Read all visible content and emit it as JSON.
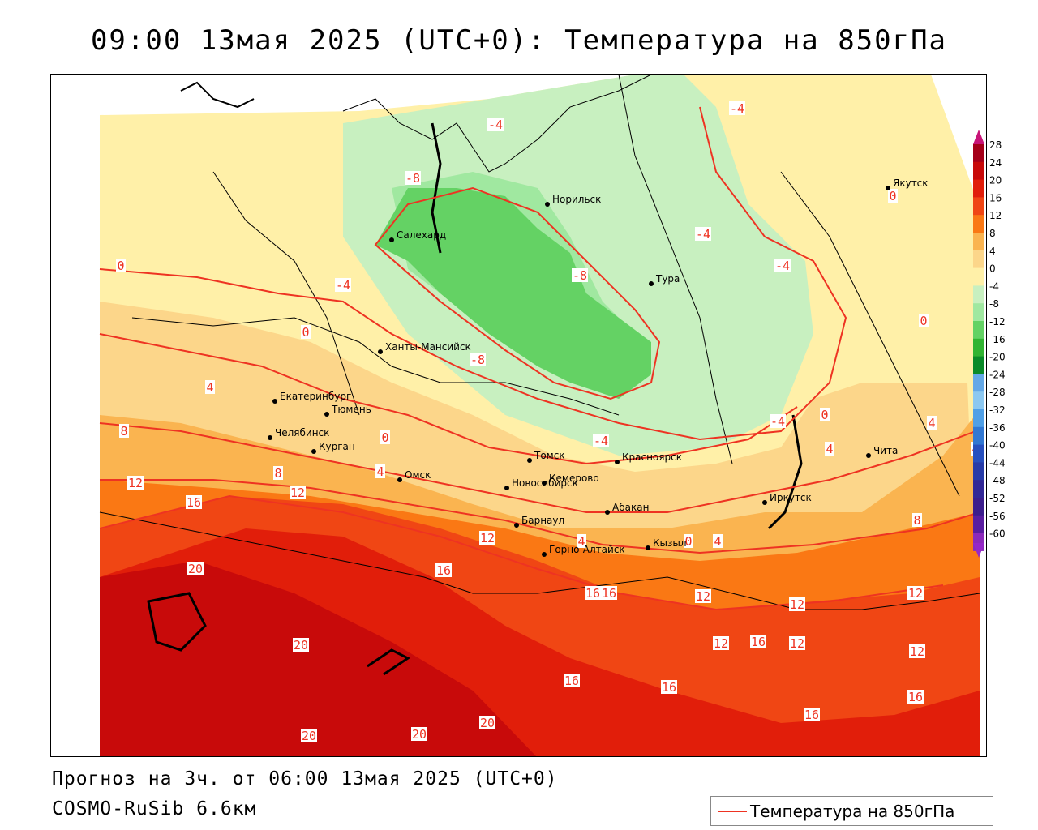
{
  "title": "09:00 13мая 2025 (UTC+0): Температура на 850гПа",
  "footer": {
    "forecast": "Прогноз на 3ч. от 06:00 13мая 2025 (UTC+0)",
    "model": "COSMO-RuSib 6.6км"
  },
  "legend": {
    "label": "Температура на 850гПа",
    "line_color": "#ee3322"
  },
  "colorbar": {
    "ticks": [
      "28",
      "24",
      "20",
      "16",
      "12",
      "8",
      "4",
      "0",
      "-4",
      "-8",
      "-12",
      "-16",
      "-20",
      "-24",
      "-28",
      "-32",
      "-36",
      "-40",
      "-44",
      "-48",
      "-52",
      "-56",
      "-60"
    ],
    "colors": [
      "#a50019",
      "#c80a0a",
      "#e11e0a",
      "#f04614",
      "#fa7814",
      "#fab450",
      "#fcd68a",
      "#fff0a8",
      "#c8f0c0",
      "#a0e8a0",
      "#64d264",
      "#32b432",
      "#0a8a28",
      "#64a8e6",
      "#8cc8f0",
      "#50a0e6",
      "#3278d2",
      "#2850be",
      "#283ca8",
      "#322896",
      "#3c1e8c",
      "#5a1ea0",
      "#8c2aba"
    ]
  },
  "cities": [
    {
      "name": "Салехард"
    },
    {
      "name": "Норильск"
    },
    {
      "name": "Якутск"
    },
    {
      "name": "Тура"
    },
    {
      "name": "Ханты-Мансийск"
    },
    {
      "name": "Екатеринбург"
    },
    {
      "name": "Тюмень"
    },
    {
      "name": "Челябинск"
    },
    {
      "name": "Курган"
    },
    {
      "name": "Омск"
    },
    {
      "name": "Новосибирск"
    },
    {
      "name": "Томск"
    },
    {
      "name": "Кемерово"
    },
    {
      "name": "Красноярск"
    },
    {
      "name": "Абакан"
    },
    {
      "name": "Барнаул"
    },
    {
      "name": "Горно-Алтайск"
    },
    {
      "name": "Кызыл"
    },
    {
      "name": "Иркутск"
    },
    {
      "name": "Чита"
    }
  ],
  "contour_labels": [
    "-4",
    "-8",
    "-4",
    "-4",
    "-4",
    "0",
    "0",
    "-4",
    "0",
    "-8",
    "-8",
    "-4",
    "4",
    "0",
    "4",
    "0",
    "-4",
    "0",
    "4",
    "4",
    "4",
    "8",
    "12",
    "16",
    "12",
    "4",
    "0",
    "4",
    "8",
    "8",
    "12",
    "20",
    "16",
    "12",
    "16",
    "12",
    "12",
    "12",
    "16",
    "12",
    "20",
    "16",
    "16",
    "12",
    "16",
    "16",
    "20",
    "20",
    "20",
    "16"
  ]
}
